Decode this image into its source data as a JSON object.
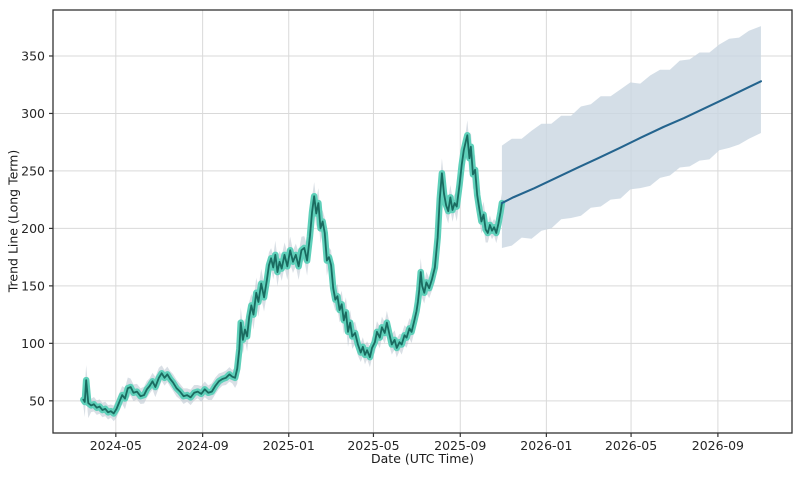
{
  "colors": {
    "background": "#ffffff",
    "grid": "#d9d9d9",
    "spine": "#333333",
    "tick_label": "#262626",
    "history_line": "#1a6b60",
    "history_band": "#5fd0ba",
    "history_halo": "#b3c0cb",
    "forecast_line": "#24648e",
    "forecast_band": "#c9d6e1"
  },
  "chart_data": {
    "type": "line",
    "title": "",
    "xlabel": "Date (UTC Time)",
    "ylabel": "Trend Line (Long Term)",
    "grid": true,
    "legend": false,
    "x_axis": {
      "min": "2024-02-02",
      "max": "2026-12-15",
      "ticks": [
        "2024-05-01",
        "2024-09-01",
        "2025-01-01",
        "2025-05-01",
        "2025-09-01",
        "2026-01-01",
        "2026-05-01",
        "2026-09-01"
      ],
      "tick_labels": [
        "2024-05",
        "2024-09",
        "2025-01",
        "2025-05",
        "2025-09",
        "2026-01",
        "2026-05",
        "2026-09"
      ]
    },
    "y_axis": {
      "min": 22,
      "max": 390,
      "ticks": [
        50,
        100,
        150,
        200,
        250,
        300,
        350
      ]
    },
    "series": [
      {
        "name": "history",
        "type": "line",
        "line_color": "#1a6b60",
        "band_color": "#5fd0ba",
        "halo_color": "#b3c0cb",
        "x": [
          "2024-03-16",
          "2024-03-18",
          "2024-03-20",
          "2024-03-23",
          "2024-03-27",
          "2024-03-31",
          "2024-04-04",
          "2024-04-08",
          "2024-04-12",
          "2024-04-16",
          "2024-04-20",
          "2024-04-24",
          "2024-04-28",
          "2024-05-02",
          "2024-05-06",
          "2024-05-10",
          "2024-05-14",
          "2024-05-18",
          "2024-05-22",
          "2024-05-26",
          "2024-05-31",
          "2024-06-05",
          "2024-06-10",
          "2024-06-14",
          "2024-06-18",
          "2024-06-22",
          "2024-06-26",
          "2024-07-01",
          "2024-07-05",
          "2024-07-09",
          "2024-07-13",
          "2024-07-17",
          "2024-07-21",
          "2024-07-26",
          "2024-07-31",
          "2024-08-05",
          "2024-08-10",
          "2024-08-15",
          "2024-08-20",
          "2024-08-25",
          "2024-08-30",
          "2024-09-04",
          "2024-09-09",
          "2024-09-14",
          "2024-09-19",
          "2024-09-24",
          "2024-09-29",
          "2024-10-04",
          "2024-10-09",
          "2024-10-13",
          "2024-10-17",
          "2024-10-20",
          "2024-10-23",
          "2024-10-25",
          "2024-10-28",
          "2024-10-31",
          "2024-11-03",
          "2024-11-06",
          "2024-11-09",
          "2024-11-12",
          "2024-11-16",
          "2024-11-19",
          "2024-11-23",
          "2024-11-27",
          "2024-12-01",
          "2024-12-04",
          "2024-12-07",
          "2024-12-10",
          "2024-12-13",
          "2024-12-16",
          "2024-12-19",
          "2024-12-22",
          "2024-12-26",
          "2024-12-30",
          "2025-01-03",
          "2025-01-07",
          "2025-01-11",
          "2025-01-15",
          "2025-01-19",
          "2025-01-23",
          "2025-01-27",
          "2025-01-31",
          "2025-02-03",
          "2025-02-06",
          "2025-02-09",
          "2025-02-12",
          "2025-02-15",
          "2025-02-18",
          "2025-02-21",
          "2025-02-24",
          "2025-02-27",
          "2025-03-02",
          "2025-03-05",
          "2025-03-08",
          "2025-03-11",
          "2025-03-14",
          "2025-03-17",
          "2025-03-20",
          "2025-03-23",
          "2025-03-26",
          "2025-03-29",
          "2025-04-01",
          "2025-04-05",
          "2025-04-09",
          "2025-04-13",
          "2025-04-16",
          "2025-04-19",
          "2025-04-22",
          "2025-04-26",
          "2025-04-29",
          "2025-05-03",
          "2025-05-06",
          "2025-05-10",
          "2025-05-13",
          "2025-05-17",
          "2025-05-20",
          "2025-05-24",
          "2025-05-27",
          "2025-05-31",
          "2025-06-03",
          "2025-06-07",
          "2025-06-10",
          "2025-06-14",
          "2025-06-17",
          "2025-06-21",
          "2025-06-24",
          "2025-06-28",
          "2025-07-01",
          "2025-07-03",
          "2025-07-05",
          "2025-07-07",
          "2025-07-09",
          "2025-07-12",
          "2025-07-15",
          "2025-07-19",
          "2025-07-23",
          "2025-07-27",
          "2025-07-31",
          "2025-08-03",
          "2025-08-06",
          "2025-08-09",
          "2025-08-12",
          "2025-08-15",
          "2025-08-18",
          "2025-08-21",
          "2025-08-24",
          "2025-08-27",
          "2025-08-31",
          "2025-09-03",
          "2025-09-06",
          "2025-09-09",
          "2025-09-11",
          "2025-09-14",
          "2025-09-16",
          "2025-09-19",
          "2025-09-22",
          "2025-09-25",
          "2025-09-28",
          "2025-10-01",
          "2025-10-04",
          "2025-10-07",
          "2025-10-10",
          "2025-10-13",
          "2025-10-16",
          "2025-10-19",
          "2025-10-22",
          "2025-10-25",
          "2025-10-28",
          "2025-10-30"
        ],
        "y": [
          51,
          49,
          68,
          48,
          46,
          47,
          44,
          45,
          42,
          43,
          40,
          41,
          39,
          43,
          49,
          55,
          52,
          61,
          62,
          57,
          58,
          54,
          55,
          60,
          63,
          67,
          62,
          70,
          74,
          70,
          73,
          69,
          66,
          61,
          58,
          54,
          55,
          53,
          57,
          58,
          56,
          60,
          57,
          58,
          63,
          67,
          69,
          70,
          73,
          71,
          70,
          78,
          95,
          118,
          103,
          112,
          106,
          123,
          133,
          125,
          144,
          136,
          152,
          140,
          155,
          168,
          174,
          166,
          177,
          162,
          171,
          165,
          177,
          167,
          181,
          171,
          177,
          167,
          181,
          183,
          172,
          193,
          214,
          228,
          213,
          222,
          200,
          206,
          196,
          172,
          175,
          168,
          148,
          138,
          141,
          129,
          134,
          120,
          127,
          110,
          118,
          106,
          109,
          99,
          92,
          97,
          90,
          94,
          88,
          96,
          101,
          110,
          105,
          114,
          109,
          118,
          107,
          99,
          103,
          96,
          101,
          99,
          107,
          105,
          113,
          110,
          120,
          128,
          136,
          147,
          162,
          150,
          144,
          153,
          148,
          156,
          166,
          192,
          226,
          248,
          230,
          220,
          215,
          227,
          216,
          222,
          219,
          238,
          255,
          268,
          276,
          281,
          261,
          271,
          247,
          251,
          229,
          217,
          206,
          212,
          199,
          196,
          203,
          198,
          201,
          196,
          204,
          214,
          222
        ]
      },
      {
        "name": "forecast",
        "type": "line",
        "line_color": "#24648e",
        "x": [
          "2025-10-30",
          "2025-11-15",
          "2025-12-15",
          "2026-01-15",
          "2026-02-15",
          "2026-03-15",
          "2026-04-15",
          "2026-05-15",
          "2026-06-15",
          "2026-07-15",
          "2026-08-15",
          "2026-09-15",
          "2026-10-15",
          "2026-11-01"
        ],
        "y": [
          222,
          227,
          235,
          244,
          253,
          261,
          270,
          279,
          288,
          296,
          305,
          314,
          323,
          328
        ]
      },
      {
        "name": "forecast_confidence_band",
        "type": "band",
        "fill_color": "#c9d6e1",
        "x": [
          "2025-10-30",
          "2025-11-13",
          "2025-11-27",
          "2025-12-11",
          "2025-12-25",
          "2026-01-08",
          "2026-01-22",
          "2026-02-05",
          "2026-02-19",
          "2026-03-05",
          "2026-03-19",
          "2026-04-02",
          "2026-04-16",
          "2026-04-30",
          "2026-05-14",
          "2026-05-28",
          "2026-06-11",
          "2026-06-25",
          "2026-07-09",
          "2026-07-23",
          "2026-08-06",
          "2026-08-20",
          "2026-09-03",
          "2026-09-17",
          "2026-10-01",
          "2026-10-15",
          "2026-11-01"
        ],
        "upper": [
          272,
          278,
          278,
          285,
          291,
          291,
          298,
          298,
          306,
          308,
          315,
          315,
          321,
          327,
          326,
          333,
          338,
          338,
          346,
          347,
          353,
          353,
          360,
          365,
          366,
          372,
          376
        ],
        "lower": [
          183,
          185,
          192,
          191,
          198,
          200,
          208,
          209,
          211,
          218,
          219,
          225,
          226,
          234,
          235,
          237,
          244,
          246,
          253,
          254,
          259,
          260,
          268,
          270,
          273,
          278,
          283
        ]
      }
    ]
  }
}
